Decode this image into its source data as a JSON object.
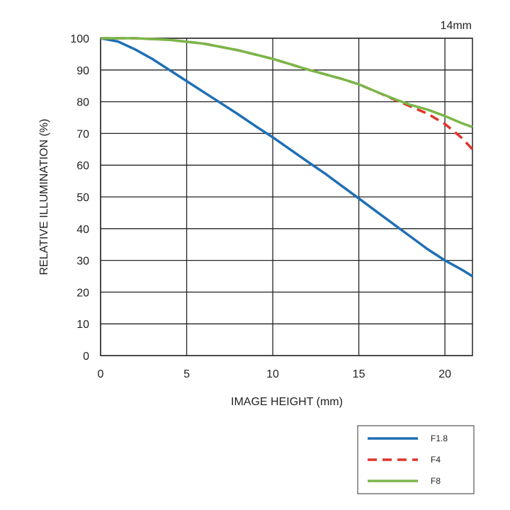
{
  "chart_data": {
    "type": "line",
    "title": "14mm",
    "xlabel": "IMAGE HEIGHT (mm)",
    "ylabel": "RELATIVE ILLUMINATION (%)",
    "xlim": [
      0,
      21.6
    ],
    "ylim": [
      0,
      100
    ],
    "xticks": [
      0,
      5,
      10,
      15,
      20
    ],
    "yticks": [
      0,
      10,
      20,
      30,
      40,
      50,
      60,
      70,
      80,
      90,
      100
    ],
    "grid": true,
    "legend_position": "bottom-right, below plot",
    "series": [
      {
        "name": "F1.8",
        "color": "#1f6fb5",
        "dash": "solid",
        "x": [
          0,
          1,
          2,
          3,
          4,
          5,
          6,
          7,
          8,
          9,
          10,
          11,
          12,
          13,
          14,
          15,
          16,
          17,
          18,
          19,
          20,
          21,
          21.6
        ],
        "y": [
          100,
          99,
          96.5,
          93.5,
          90,
          86.5,
          83,
          79.5,
          76,
          72.3,
          68.8,
          65,
          61.2,
          57.5,
          53.5,
          49.5,
          45.5,
          41.5,
          37.5,
          33.5,
          30,
          27,
          25
        ]
      },
      {
        "name": "F4",
        "color": "#e0342a",
        "dash": "dashed",
        "x": [
          0,
          2,
          4,
          6,
          8,
          10,
          12,
          14,
          15,
          16,
          17,
          18,
          19,
          20,
          21,
          21.6
        ],
        "y": [
          100,
          100,
          99.5,
          98.3,
          96.2,
          93.5,
          90.2,
          87.2,
          85.5,
          83.2,
          80.8,
          78.5,
          76.2,
          73,
          68.5,
          65
        ]
      },
      {
        "name": "F8",
        "color": "#7ab648",
        "dash": "solid",
        "x": [
          0,
          2,
          4,
          6,
          8,
          10,
          12,
          14,
          15,
          16,
          17,
          18,
          19,
          20,
          21,
          21.6
        ],
        "y": [
          100,
          100,
          99.5,
          98.3,
          96.2,
          93.5,
          90.2,
          87.2,
          85.5,
          83.2,
          81,
          79,
          77.5,
          75.5,
          73.2,
          72
        ]
      }
    ]
  }
}
